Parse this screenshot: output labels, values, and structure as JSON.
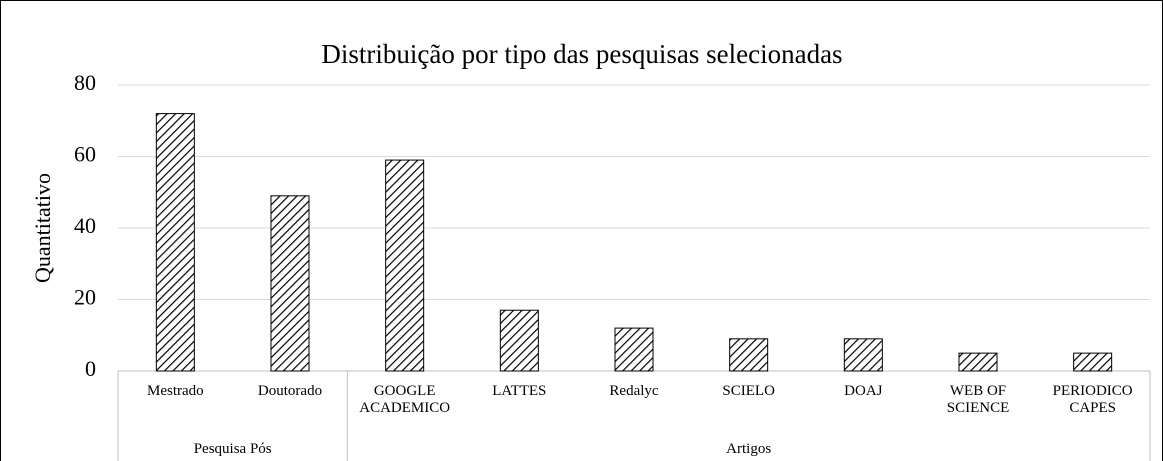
{
  "chart_data": {
    "type": "bar",
    "title": "Distribuição por tipo das pesquisas selecionadas",
    "y_label": "Quantitativo",
    "groups": [
      {
        "label": "Pesquisa Pós",
        "categories": [
          "Mestrado",
          "Doutorado"
        ],
        "values": [
          72,
          49
        ]
      },
      {
        "label": "Artigos",
        "categories": [
          "GOOGLE ACADEMICO",
          "LATTES",
          "Redalyc",
          "SCIELO",
          "DOAJ",
          "WEB OF SCIENCE",
          "PERIODICO CAPES"
        ],
        "values": [
          59,
          17,
          12,
          9,
          9,
          5,
          5
        ]
      }
    ],
    "color": "#000000",
    "ylim": [
      0,
      80
    ],
    "yticks": [
      0,
      20,
      40,
      60,
      80
    ],
    "grid": true
  }
}
